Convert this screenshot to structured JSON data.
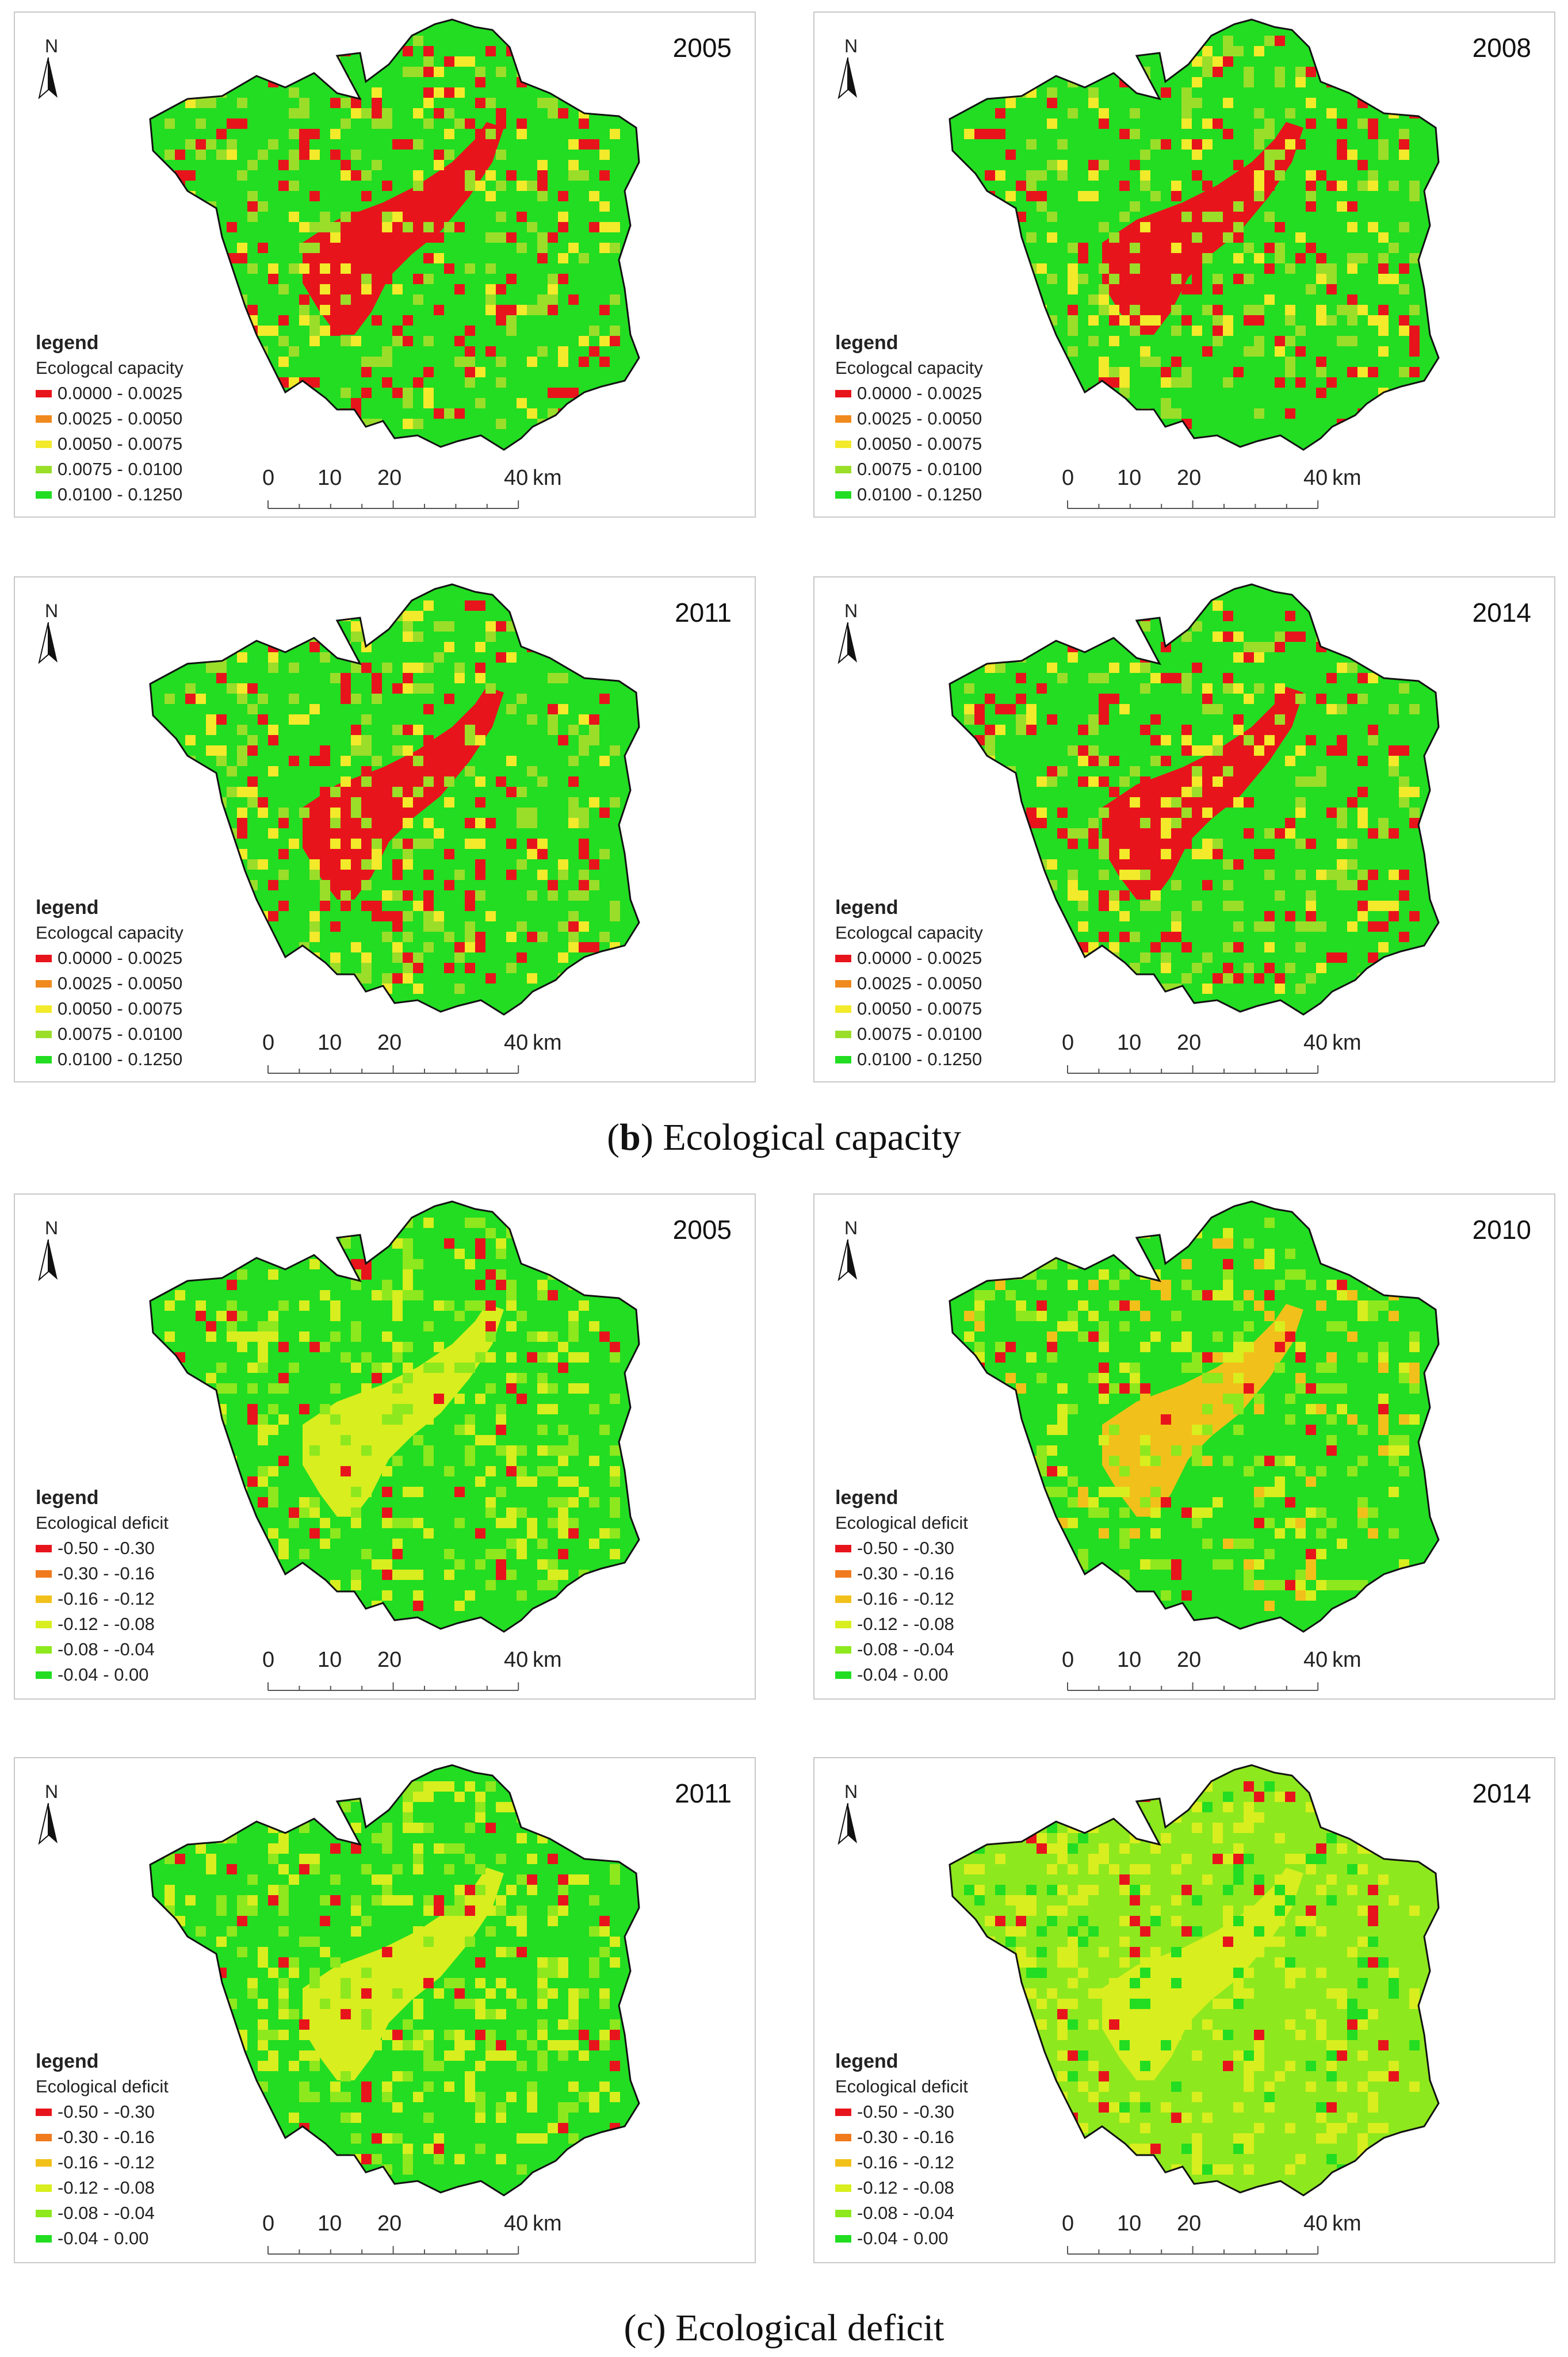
{
  "capacity": {
    "caption_letter": "b",
    "caption_text": "Ecological capacity",
    "legend_title": "legend",
    "legend_subtitle": "Ecologcal capacity",
    "legend_items": [
      {
        "label": "0.0000 - 0.0025",
        "color": "#e8141c"
      },
      {
        "label": "0.0025 - 0.0050",
        "color": "#f08a1e"
      },
      {
        "label": "0.0050 - 0.0075",
        "color": "#f2ea2a"
      },
      {
        "label": "0.0075 - 0.0100",
        "color": "#9ade2a"
      },
      {
        "label": "0.0100 - 0.1250",
        "color": "#22dd22"
      }
    ],
    "panels": [
      {
        "year": "2005"
      },
      {
        "year": "2008"
      },
      {
        "year": "2011"
      },
      {
        "year": "2014"
      }
    ]
  },
  "deficit": {
    "caption_letter": "c",
    "caption_text": "Ecological deficit",
    "legend_title": "legend",
    "legend_subtitle": "Ecological deficit",
    "legend_items": [
      {
        "label": "-0.50 - -0.30",
        "color": "#e8141c"
      },
      {
        "label": "-0.30 - -0.16",
        "color": "#f07a1e"
      },
      {
        "label": "-0.16 - -0.12",
        "color": "#f2c01a"
      },
      {
        "label": "-0.12 - -0.08",
        "color": "#d8ee1e"
      },
      {
        "label": "-0.08 - -0.04",
        "color": "#8ee81e"
      },
      {
        "label": "-0.04 -  0.00",
        "color": "#22dd22"
      }
    ],
    "panels": [
      {
        "year": "2005"
      },
      {
        "year": "2010"
      },
      {
        "year": "2011"
      },
      {
        "year": "2014"
      }
    ]
  },
  "common": {
    "north_label": "N",
    "scale_labels": [
      "0",
      "10",
      "20",
      "40"
    ],
    "scale_unit": "km"
  }
}
